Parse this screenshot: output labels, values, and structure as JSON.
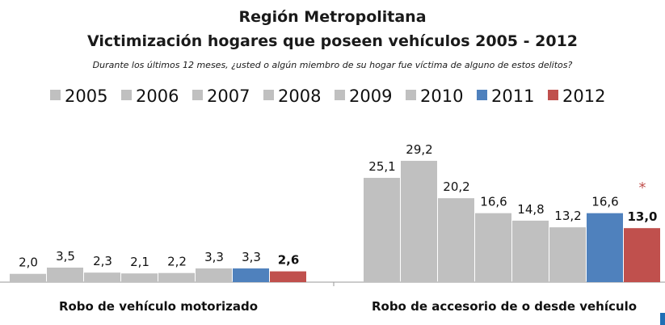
{
  "chart_data": {
    "type": "bar",
    "title": "Región Metropolitana",
    "subtitle": "Victimización hogares que poseen vehículos 2005 - 2012",
    "question": "Durante los últimos 12 meses, ¿usted o algún miembro de su hogar fue víctima de alguno de estos delitos?",
    "categories": [
      "Robo de vehículo motorizado",
      "Robo de accesorio de o desde vehículo"
    ],
    "legend_position": "top",
    "grid": false,
    "ylim": [
      0,
      30
    ],
    "series": [
      {
        "name": "2005",
        "color": "#c0c0c0",
        "values": [
          2.0,
          25.1
        ],
        "labels": [
          "2,0",
          "25,1"
        ]
      },
      {
        "name": "2006",
        "color": "#c0c0c0",
        "values": [
          3.5,
          29.2
        ],
        "labels": [
          "3,5",
          "29,2"
        ]
      },
      {
        "name": "2007",
        "color": "#c0c0c0",
        "values": [
          2.3,
          20.2
        ],
        "labels": [
          "2,3",
          "20,2"
        ]
      },
      {
        "name": "2008",
        "color": "#c0c0c0",
        "values": [
          2.1,
          16.6
        ],
        "labels": [
          "2,1",
          "16,6"
        ]
      },
      {
        "name": "2009",
        "color": "#c0c0c0",
        "values": [
          2.2,
          14.8
        ],
        "labels": [
          "2,2",
          "14,8"
        ]
      },
      {
        "name": "2010",
        "color": "#c0c0c0",
        "values": [
          3.3,
          13.2
        ],
        "labels": [
          "3,3",
          "13,2"
        ]
      },
      {
        "name": "2011",
        "color": "#4f81bd",
        "values": [
          3.3,
          16.6
        ],
        "labels": [
          "3,3",
          "16,6"
        ]
      },
      {
        "name": "2012",
        "color": "#c0504d",
        "values": [
          2.6,
          13.0
        ],
        "labels": [
          "2,6",
          "13,0"
        ]
      }
    ],
    "annotations": [
      {
        "category": 1,
        "series": "2012",
        "text": "*",
        "color": "#c0504d"
      }
    ]
  }
}
